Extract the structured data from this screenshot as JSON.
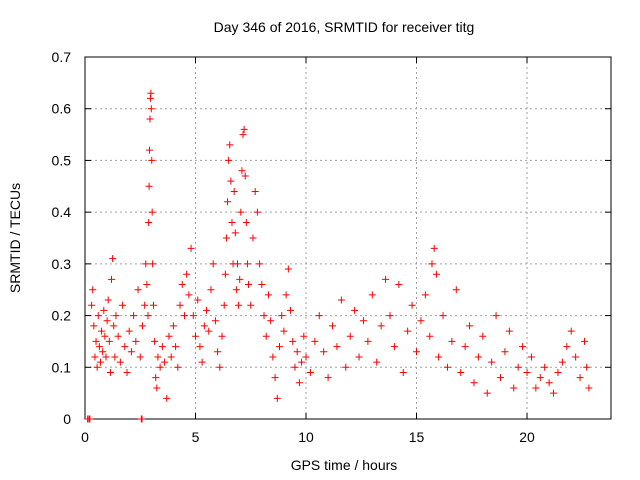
{
  "chart_data": {
    "type": "scatter",
    "title": "Day 346 of 2016, SRMTID for receiver titg",
    "xlabel": "GPS time / hours",
    "ylabel": "SRMTID / TECUs",
    "xlim": [
      0,
      23.8
    ],
    "ylim": [
      0,
      0.7
    ],
    "xticks": [
      0,
      5,
      10,
      15,
      20
    ],
    "xtick_labels": [
      "0",
      "5",
      "10",
      "15",
      "20"
    ],
    "yticks": [
      0,
      0.1,
      0.2,
      0.3,
      0.4,
      0.5,
      0.6,
      0.7
    ],
    "ytick_labels": [
      "0",
      "0.1",
      "0.2",
      "0.3",
      "0.4",
      "0.5",
      "0.6",
      "0.7"
    ],
    "grid": true,
    "marker": "+",
    "color": "#ff0000",
    "series": [
      {
        "name": "SRMTID",
        "points": [
          [
            0.12,
            0.0
          ],
          [
            0.18,
            0.0
          ],
          [
            0.22,
            0.0
          ],
          [
            2.55,
            0.0
          ],
          [
            2.58,
            0.0
          ],
          [
            0.3,
            0.22
          ],
          [
            0.35,
            0.25
          ],
          [
            0.4,
            0.18
          ],
          [
            0.45,
            0.12
          ],
          [
            0.5,
            0.15
          ],
          [
            0.55,
            0.1
          ],
          [
            0.6,
            0.2
          ],
          [
            0.65,
            0.14
          ],
          [
            0.7,
            0.11
          ],
          [
            0.75,
            0.17
          ],
          [
            0.8,
            0.13
          ],
          [
            0.85,
            0.21
          ],
          [
            0.9,
            0.16
          ],
          [
            0.95,
            0.12
          ],
          [
            1.0,
            0.19
          ],
          [
            1.05,
            0.23
          ],
          [
            1.1,
            0.15
          ],
          [
            1.15,
            0.09
          ],
          [
            1.2,
            0.27
          ],
          [
            1.25,
            0.31
          ],
          [
            1.3,
            0.18
          ],
          [
            1.35,
            0.12
          ],
          [
            1.4,
            0.2
          ],
          [
            1.5,
            0.16
          ],
          [
            1.6,
            0.11
          ],
          [
            1.7,
            0.22
          ],
          [
            1.8,
            0.14
          ],
          [
            1.9,
            0.09
          ],
          [
            2.0,
            0.17
          ],
          [
            2.1,
            0.13
          ],
          [
            2.2,
            0.2
          ],
          [
            2.3,
            0.15
          ],
          [
            2.4,
            0.25
          ],
          [
            2.5,
            0.12
          ],
          [
            2.6,
            0.18
          ],
          [
            2.7,
            0.22
          ],
          [
            2.75,
            0.3
          ],
          [
            2.8,
            0.26
          ],
          [
            2.85,
            0.2
          ],
          [
            2.88,
            0.38
          ],
          [
            2.9,
            0.45
          ],
          [
            2.92,
            0.52
          ],
          [
            2.94,
            0.58
          ],
          [
            2.96,
            0.62
          ],
          [
            2.98,
            0.63
          ],
          [
            3.0,
            0.6
          ],
          [
            3.02,
            0.5
          ],
          [
            3.04,
            0.4
          ],
          [
            3.06,
            0.3
          ],
          [
            3.1,
            0.22
          ],
          [
            3.15,
            0.15
          ],
          [
            3.2,
            0.08
          ],
          [
            3.25,
            0.06
          ],
          [
            3.3,
            0.12
          ],
          [
            3.4,
            0.1
          ],
          [
            3.5,
            0.14
          ],
          [
            3.6,
            0.11
          ],
          [
            3.7,
            0.04
          ],
          [
            3.8,
            0.16
          ],
          [
            3.9,
            0.12
          ],
          [
            4.0,
            0.18
          ],
          [
            4.1,
            0.14
          ],
          [
            4.2,
            0.1
          ],
          [
            4.3,
            0.22
          ],
          [
            4.4,
            0.26
          ],
          [
            4.5,
            0.2
          ],
          [
            4.6,
            0.28
          ],
          [
            4.7,
            0.24
          ],
          [
            4.8,
            0.33
          ],
          [
            4.9,
            0.2
          ],
          [
            5.0,
            0.16
          ],
          [
            5.1,
            0.23
          ],
          [
            5.2,
            0.14
          ],
          [
            5.3,
            0.11
          ],
          [
            5.4,
            0.18
          ],
          [
            5.5,
            0.21
          ],
          [
            5.6,
            0.17
          ],
          [
            5.7,
            0.25
          ],
          [
            5.8,
            0.3
          ],
          [
            5.9,
            0.19
          ],
          [
            6.0,
            0.13
          ],
          [
            6.1,
            0.1
          ],
          [
            6.2,
            0.16
          ],
          [
            6.3,
            0.22
          ],
          [
            6.35,
            0.28
          ],
          [
            6.4,
            0.35
          ],
          [
            6.45,
            0.42
          ],
          [
            6.5,
            0.5
          ],
          [
            6.55,
            0.53
          ],
          [
            6.6,
            0.46
          ],
          [
            6.65,
            0.38
          ],
          [
            6.7,
            0.3
          ],
          [
            6.75,
            0.44
          ],
          [
            6.8,
            0.36
          ],
          [
            6.85,
            0.25
          ],
          [
            6.9,
            0.3
          ],
          [
            6.95,
            0.22
          ],
          [
            7.0,
            0.27
          ],
          [
            7.05,
            0.4
          ],
          [
            7.1,
            0.48
          ],
          [
            7.15,
            0.55
          ],
          [
            7.2,
            0.56
          ],
          [
            7.25,
            0.47
          ],
          [
            7.3,
            0.38
          ],
          [
            7.35,
            0.3
          ],
          [
            7.4,
            0.26
          ],
          [
            7.5,
            0.22
          ],
          [
            7.6,
            0.35
          ],
          [
            7.7,
            0.44
          ],
          [
            7.8,
            0.4
          ],
          [
            7.9,
            0.3
          ],
          [
            8.0,
            0.26
          ],
          [
            8.1,
            0.2
          ],
          [
            8.2,
            0.16
          ],
          [
            8.3,
            0.24
          ],
          [
            8.4,
            0.19
          ],
          [
            8.5,
            0.12
          ],
          [
            8.6,
            0.08
          ],
          [
            8.7,
            0.04
          ],
          [
            8.8,
            0.14
          ],
          [
            8.9,
            0.2
          ],
          [
            9.0,
            0.17
          ],
          [
            9.1,
            0.24
          ],
          [
            9.2,
            0.29
          ],
          [
            9.3,
            0.21
          ],
          [
            9.4,
            0.15
          ],
          [
            9.5,
            0.1
          ],
          [
            9.6,
            0.13
          ],
          [
            9.7,
            0.07
          ],
          [
            9.8,
            0.11
          ],
          [
            9.9,
            0.16
          ],
          [
            10.0,
            0.12
          ],
          [
            10.2,
            0.09
          ],
          [
            10.4,
            0.15
          ],
          [
            10.6,
            0.2
          ],
          [
            10.8,
            0.13
          ],
          [
            11.0,
            0.08
          ],
          [
            11.2,
            0.18
          ],
          [
            11.4,
            0.14
          ],
          [
            11.6,
            0.23
          ],
          [
            11.8,
            0.1
          ],
          [
            12.0,
            0.16
          ],
          [
            12.2,
            0.21
          ],
          [
            12.4,
            0.12
          ],
          [
            12.6,
            0.19
          ],
          [
            12.8,
            0.15
          ],
          [
            13.0,
            0.24
          ],
          [
            13.2,
            0.11
          ],
          [
            13.4,
            0.18
          ],
          [
            13.6,
            0.27
          ],
          [
            13.8,
            0.2
          ],
          [
            14.0,
            0.14
          ],
          [
            14.2,
            0.26
          ],
          [
            14.4,
            0.09
          ],
          [
            14.6,
            0.17
          ],
          [
            14.8,
            0.22
          ],
          [
            15.0,
            0.13
          ],
          [
            15.2,
            0.19
          ],
          [
            15.4,
            0.24
          ],
          [
            15.6,
            0.16
          ],
          [
            15.7,
            0.3
          ],
          [
            15.8,
            0.33
          ],
          [
            15.9,
            0.28
          ],
          [
            16.0,
            0.12
          ],
          [
            16.2,
            0.2
          ],
          [
            16.4,
            0.1
          ],
          [
            16.6,
            0.15
          ],
          [
            16.8,
            0.25
          ],
          [
            17.0,
            0.09
          ],
          [
            17.2,
            0.14
          ],
          [
            17.4,
            0.18
          ],
          [
            17.6,
            0.07
          ],
          [
            17.8,
            0.12
          ],
          [
            18.0,
            0.16
          ],
          [
            18.2,
            0.05
          ],
          [
            18.4,
            0.11
          ],
          [
            18.6,
            0.2
          ],
          [
            18.8,
            0.08
          ],
          [
            19.0,
            0.13
          ],
          [
            19.2,
            0.17
          ],
          [
            19.4,
            0.06
          ],
          [
            19.6,
            0.1
          ],
          [
            19.8,
            0.14
          ],
          [
            20.0,
            0.09
          ],
          [
            20.2,
            0.12
          ],
          [
            20.4,
            0.06
          ],
          [
            20.6,
            0.08
          ],
          [
            20.8,
            0.1
          ],
          [
            21.0,
            0.07
          ],
          [
            21.2,
            0.05
          ],
          [
            21.4,
            0.09
          ],
          [
            21.6,
            0.11
          ],
          [
            21.8,
            0.14
          ],
          [
            22.0,
            0.17
          ],
          [
            22.2,
            0.12
          ],
          [
            22.4,
            0.08
          ],
          [
            22.6,
            0.15
          ],
          [
            22.7,
            0.1
          ],
          [
            22.8,
            0.06
          ]
        ]
      }
    ]
  }
}
